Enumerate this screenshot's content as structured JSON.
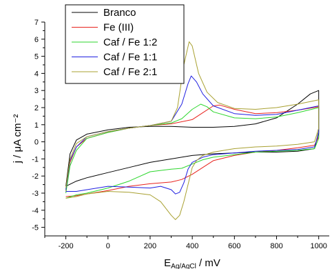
{
  "chart_data": {
    "type": "line",
    "xlabel_main": "E",
    "xlabel_sub": "Ag/AgCl",
    "xlabel_unit": " / mV",
    "ylabel": "j / μA cm⁻²",
    "xlim": [
      -300,
      1050
    ],
    "ylim": [
      -5.5,
      7
    ],
    "x_ticks": [
      -200,
      0,
      200,
      400,
      600,
      800,
      1000
    ],
    "x_tick_labels": [
      "-200",
      "0",
      "200",
      "400",
      "600",
      "800",
      "1000"
    ],
    "y_ticks": [
      -5,
      -4,
      -3,
      -2,
      -1,
      0,
      1,
      2,
      3,
      4,
      5,
      6,
      7
    ],
    "y_tick_labels": [
      "-5",
      "-4",
      "-3",
      "-2",
      "-1",
      "0",
      "1",
      "2",
      "3",
      "4",
      "5",
      "6",
      "7"
    ],
    "legend_position": "top-left",
    "series": [
      {
        "name": "Branco",
        "color": "#000000",
        "points": [
          [
            -200,
            -2.6
          ],
          [
            -180,
            -0.7
          ],
          [
            -150,
            0.1
          ],
          [
            -100,
            0.45
          ],
          [
            0,
            0.7
          ],
          [
            100,
            0.85
          ],
          [
            200,
            0.9
          ],
          [
            300,
            0.9
          ],
          [
            400,
            0.85
          ],
          [
            500,
            0.85
          ],
          [
            600,
            0.9
          ],
          [
            700,
            1.05
          ],
          [
            800,
            1.4
          ],
          [
            900,
            2.2
          ],
          [
            960,
            2.8
          ],
          [
            1000,
            3.0
          ],
          [
            1000,
            0.6
          ],
          [
            980,
            -0.4
          ],
          [
            900,
            -0.55
          ],
          [
            800,
            -0.6
          ],
          [
            700,
            -0.6
          ],
          [
            600,
            -0.65
          ],
          [
            500,
            -0.7
          ],
          [
            400,
            -0.8
          ],
          [
            300,
            -1.0
          ],
          [
            200,
            -1.2
          ],
          [
            100,
            -1.5
          ],
          [
            0,
            -1.8
          ],
          [
            -100,
            -2.1
          ],
          [
            -150,
            -2.3
          ],
          [
            -200,
            -2.6
          ]
        ]
      },
      {
        "name": "Fe (III)",
        "color": "#e8211c",
        "points": [
          [
            -200,
            -2.9
          ],
          [
            -180,
            -1.2
          ],
          [
            -150,
            -0.3
          ],
          [
            -100,
            0.2
          ],
          [
            0,
            0.55
          ],
          [
            100,
            0.8
          ],
          [
            200,
            0.95
          ],
          [
            300,
            1.05
          ],
          [
            400,
            1.3
          ],
          [
            450,
            1.7
          ],
          [
            500,
            2.1
          ],
          [
            530,
            2.15
          ],
          [
            600,
            1.9
          ],
          [
            700,
            1.65
          ],
          [
            800,
            1.7
          ],
          [
            900,
            1.85
          ],
          [
            1000,
            2.05
          ],
          [
            1000,
            0.3
          ],
          [
            980,
            -0.2
          ],
          [
            900,
            -0.35
          ],
          [
            800,
            -0.5
          ],
          [
            700,
            -0.6
          ],
          [
            600,
            -0.8
          ],
          [
            500,
            -1.1
          ],
          [
            450,
            -1.5
          ],
          [
            400,
            -1.9
          ],
          [
            350,
            -2.2
          ],
          [
            300,
            -2.35
          ],
          [
            200,
            -2.45
          ],
          [
            100,
            -2.6
          ],
          [
            0,
            -2.85
          ],
          [
            -100,
            -3.05
          ],
          [
            -150,
            -3.15
          ],
          [
            -200,
            -3.2
          ]
        ]
      },
      {
        "name": "Caf / Fe 1:2",
        "color": "#2bd62b",
        "points": [
          [
            -200,
            -3.0
          ],
          [
            -180,
            -1.4
          ],
          [
            -150,
            -0.5
          ],
          [
            -100,
            0.2
          ],
          [
            0,
            0.55
          ],
          [
            100,
            0.8
          ],
          [
            200,
            0.95
          ],
          [
            300,
            1.1
          ],
          [
            350,
            1.35
          ],
          [
            400,
            1.9
          ],
          [
            440,
            2.2
          ],
          [
            470,
            2.05
          ],
          [
            500,
            1.75
          ],
          [
            600,
            1.4
          ],
          [
            700,
            1.35
          ],
          [
            800,
            1.45
          ],
          [
            900,
            1.7
          ],
          [
            1000,
            2.0
          ],
          [
            1000,
            0.2
          ],
          [
            980,
            -0.4
          ],
          [
            900,
            -0.5
          ],
          [
            800,
            -0.55
          ],
          [
            700,
            -0.6
          ],
          [
            600,
            -0.75
          ],
          [
            500,
            -0.9
          ],
          [
            450,
            -1.05
          ],
          [
            400,
            -1.3
          ],
          [
            350,
            -1.55
          ],
          [
            300,
            -1.6
          ],
          [
            200,
            -1.75
          ],
          [
            100,
            -2.3
          ],
          [
            0,
            -2.7
          ],
          [
            -100,
            -3.0
          ],
          [
            -150,
            -3.1
          ],
          [
            -200,
            -3.3
          ]
        ]
      },
      {
        "name": "Caf / Fe 1:1",
        "color": "#1d1de0",
        "points": [
          [
            -200,
            -2.8
          ],
          [
            -180,
            -1.1
          ],
          [
            -150,
            -0.3
          ],
          [
            -100,
            0.3
          ],
          [
            0,
            0.6
          ],
          [
            100,
            0.8
          ],
          [
            200,
            0.95
          ],
          [
            300,
            1.2
          ],
          [
            350,
            2.2
          ],
          [
            380,
            3.4
          ],
          [
            395,
            3.85
          ],
          [
            420,
            3.5
          ],
          [
            450,
            2.8
          ],
          [
            500,
            2.1
          ],
          [
            600,
            1.65
          ],
          [
            700,
            1.55
          ],
          [
            800,
            1.6
          ],
          [
            900,
            1.85
          ],
          [
            1000,
            2.1
          ],
          [
            1000,
            0.5
          ],
          [
            980,
            -0.3
          ],
          [
            900,
            -0.45
          ],
          [
            800,
            -0.5
          ],
          [
            700,
            -0.55
          ],
          [
            600,
            -0.65
          ],
          [
            500,
            -0.75
          ],
          [
            450,
            -0.9
          ],
          [
            400,
            -1.2
          ],
          [
            380,
            -1.6
          ],
          [
            360,
            -2.4
          ],
          [
            340,
            -2.95
          ],
          [
            320,
            -3.05
          ],
          [
            300,
            -2.8
          ],
          [
            250,
            -2.6
          ],
          [
            200,
            -2.7
          ],
          [
            100,
            -2.65
          ],
          [
            0,
            -2.6
          ],
          [
            -100,
            -2.8
          ],
          [
            -150,
            -2.9
          ],
          [
            -200,
            -2.9
          ]
        ]
      },
      {
        "name": "Caf / Fe 2:1",
        "color": "#a8a030",
        "points": [
          [
            -200,
            -2.7
          ],
          [
            -180,
            -1.0
          ],
          [
            -150,
            -0.1
          ],
          [
            -100,
            0.3
          ],
          [
            0,
            0.6
          ],
          [
            100,
            0.8
          ],
          [
            200,
            0.95
          ],
          [
            300,
            1.2
          ],
          [
            330,
            2.0
          ],
          [
            360,
            4.5
          ],
          [
            385,
            5.85
          ],
          [
            400,
            5.6
          ],
          [
            430,
            4.0
          ],
          [
            470,
            2.9
          ],
          [
            520,
            2.3
          ],
          [
            600,
            1.95
          ],
          [
            700,
            1.9
          ],
          [
            800,
            2.0
          ],
          [
            900,
            2.2
          ],
          [
            1000,
            2.45
          ],
          [
            1000,
            0.8
          ],
          [
            980,
            0.0
          ],
          [
            900,
            -0.15
          ],
          [
            800,
            -0.25
          ],
          [
            700,
            -0.3
          ],
          [
            600,
            -0.4
          ],
          [
            500,
            -0.6
          ],
          [
            450,
            -0.8
          ],
          [
            420,
            -1.1
          ],
          [
            400,
            -1.5
          ],
          [
            380,
            -2.5
          ],
          [
            360,
            -3.5
          ],
          [
            340,
            -4.3
          ],
          [
            320,
            -4.55
          ],
          [
            300,
            -4.3
          ],
          [
            250,
            -3.5
          ],
          [
            200,
            -3.1
          ],
          [
            100,
            -2.95
          ],
          [
            0,
            -2.9
          ],
          [
            -100,
            -3.05
          ],
          [
            -150,
            -3.2
          ],
          [
            -200,
            -3.3
          ]
        ]
      }
    ]
  }
}
